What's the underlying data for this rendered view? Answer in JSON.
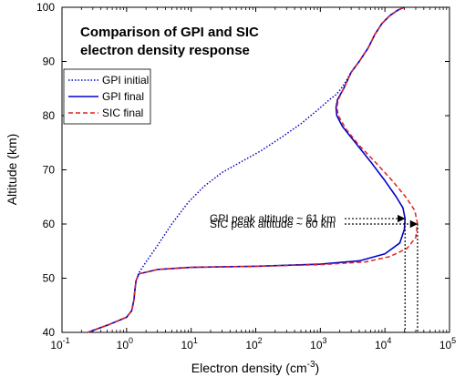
{
  "chart_data": {
    "type": "line",
    "title_lines": [
      "Comparison of GPI and SIC",
      "electron density response"
    ],
    "xlabel": "Electron density (cm",
    "xlabel_sup": "-3",
    "xlabel_end": ")",
    "ylabel": "Altitude (km)",
    "xscale": "log",
    "xlim": [
      0.1,
      100000
    ],
    "ylim": [
      40,
      100
    ],
    "grid": false,
    "legend_position": "top-left",
    "x_ticks": [
      {
        "value": 0.1,
        "base": "10",
        "exp": "-1"
      },
      {
        "value": 1,
        "base": "10",
        "exp": "0"
      },
      {
        "value": 10,
        "base": "10",
        "exp": "1"
      },
      {
        "value": 100,
        "base": "10",
        "exp": "2"
      },
      {
        "value": 1000,
        "base": "10",
        "exp": "3"
      },
      {
        "value": 10000,
        "base": "10",
        "exp": "4"
      },
      {
        "value": 100000,
        "base": "10",
        "exp": "5"
      }
    ],
    "y_ticks": [
      40,
      50,
      60,
      70,
      80,
      90,
      100
    ],
    "series": [
      {
        "name": "GPI initial",
        "color": "#0000cc",
        "dash": "dotted",
        "points": [
          [
            0.25,
            40
          ],
          [
            0.55,
            41.5
          ],
          [
            1.0,
            42.8
          ],
          [
            1.2,
            44
          ],
          [
            1.3,
            46
          ],
          [
            1.35,
            48
          ],
          [
            1.4,
            49.5
          ],
          [
            1.55,
            51
          ],
          [
            2.0,
            53
          ],
          [
            3,
            56
          ],
          [
            5,
            60
          ],
          [
            9,
            64
          ],
          [
            16,
            67
          ],
          [
            30,
            69.5
          ],
          [
            60,
            71.5
          ],
          [
            120,
            73.5
          ],
          [
            250,
            76
          ],
          [
            500,
            78.5
          ],
          [
            900,
            81
          ],
          [
            1400,
            83
          ],
          [
            1800,
            84
          ],
          [
            2100,
            85
          ],
          [
            2400,
            86
          ],
          [
            3000,
            88
          ],
          [
            4000,
            90
          ],
          [
            5500,
            92.5
          ],
          [
            7000,
            95
          ],
          [
            9000,
            97
          ],
          [
            12000,
            98.5
          ],
          [
            16000,
            99.5
          ],
          [
            20000,
            100
          ]
        ]
      },
      {
        "name": "GPI final",
        "color": "#0000cc",
        "dash": "solid",
        "points": [
          [
            0.25,
            40
          ],
          [
            0.55,
            41.5
          ],
          [
            1.0,
            42.8
          ],
          [
            1.2,
            44
          ],
          [
            1.3,
            46
          ],
          [
            1.35,
            48
          ],
          [
            1.4,
            49.5
          ],
          [
            1.55,
            50.8
          ],
          [
            3,
            51.6
          ],
          [
            10,
            52
          ],
          [
            100,
            52.2
          ],
          [
            1000,
            52.6
          ],
          [
            4000,
            53.2
          ],
          [
            10000,
            54.5
          ],
          [
            17000,
            56.5
          ],
          [
            20000,
            59
          ],
          [
            20500,
            61
          ],
          [
            19000,
            63
          ],
          [
            15000,
            65
          ],
          [
            10000,
            68
          ],
          [
            6000,
            71.5
          ],
          [
            3500,
            75
          ],
          [
            2200,
            78
          ],
          [
            1800,
            80
          ],
          [
            1750,
            81.5
          ],
          [
            1850,
            83
          ],
          [
            2300,
            85
          ],
          [
            3000,
            88
          ],
          [
            4000,
            90
          ],
          [
            5500,
            92.5
          ],
          [
            7000,
            95
          ],
          [
            9000,
            97
          ],
          [
            12000,
            98.5
          ],
          [
            16000,
            99.5
          ],
          [
            20000,
            100
          ]
        ]
      },
      {
        "name": "SIC final",
        "color": "#e02020",
        "dash": "dashed",
        "points": [
          [
            0.25,
            40
          ],
          [
            0.55,
            41.5
          ],
          [
            1.0,
            42.8
          ],
          [
            1.2,
            44
          ],
          [
            1.3,
            46
          ],
          [
            1.35,
            48
          ],
          [
            1.4,
            49.5
          ],
          [
            1.55,
            50.8
          ],
          [
            3,
            51.6
          ],
          [
            10,
            52
          ],
          [
            100,
            52.2
          ],
          [
            1000,
            52.5
          ],
          [
            5000,
            53
          ],
          [
            12000,
            54
          ],
          [
            22000,
            55.5
          ],
          [
            30000,
            57.5
          ],
          [
            32000,
            60
          ],
          [
            29000,
            62.5
          ],
          [
            21000,
            65
          ],
          [
            13000,
            68
          ],
          [
            7000,
            71.5
          ],
          [
            4000,
            74.5
          ],
          [
            2500,
            77.5
          ],
          [
            1900,
            80
          ],
          [
            1800,
            81.5
          ],
          [
            1900,
            83
          ],
          [
            2300,
            85
          ],
          [
            3000,
            88
          ],
          [
            4000,
            90
          ],
          [
            5500,
            92.5
          ],
          [
            7000,
            95
          ],
          [
            9000,
            97
          ],
          [
            12000,
            98.5
          ],
          [
            16000,
            99.5
          ],
          [
            20000,
            100
          ]
        ]
      }
    ],
    "annotations": [
      {
        "text": "GPI peak altitude ~ 61 km",
        "anchor_x": 20500,
        "anchor_y": 61,
        "drop_to_y": 40
      },
      {
        "text": "SIC peak altitude ~ 60 km",
        "anchor_x": 32000,
        "anchor_y": 60,
        "drop_to_y": 40
      }
    ]
  }
}
